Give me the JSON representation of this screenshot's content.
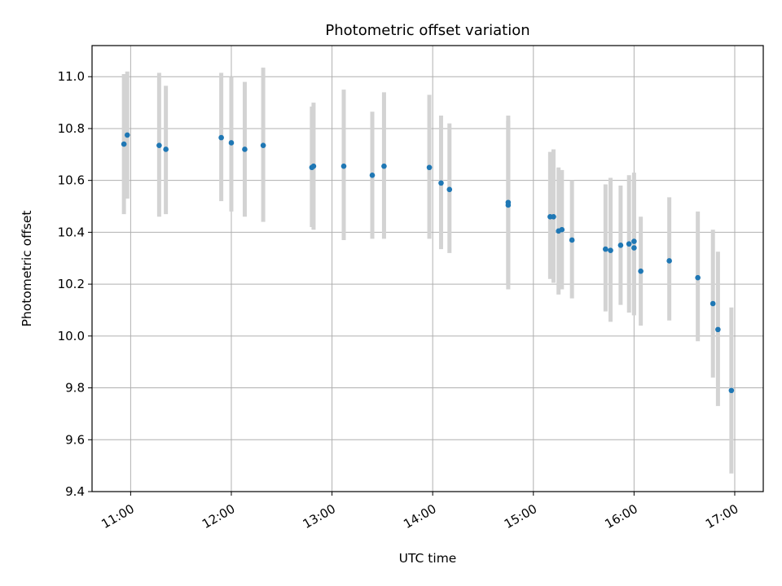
{
  "chart_data": {
    "type": "scatter",
    "title": "Photometric offset variation",
    "xlabel": "UTC time",
    "ylabel": "Photometric offset",
    "xlim": [
      "10:37",
      "17:17"
    ],
    "ylim": [
      9.4,
      11.12
    ],
    "x_ticks": [
      "11:00",
      "12:00",
      "13:00",
      "14:00",
      "15:00",
      "16:00",
      "17:00"
    ],
    "y_ticks": [
      "9.4",
      "9.6",
      "9.8",
      "10.0",
      "10.2",
      "10.4",
      "10.6",
      "10.8",
      "11.0"
    ],
    "grid": true,
    "marker_color": "#1f77b4",
    "errorbar_color": "#d3d3d3",
    "series": [
      {
        "points": [
          {
            "x": "10:56",
            "y": 10.74,
            "lo": 10.47,
            "hi": 11.01
          },
          {
            "x": "10:58",
            "y": 10.775,
            "lo": 10.53,
            "hi": 11.02
          },
          {
            "x": "11:17",
            "y": 10.735,
            "lo": 10.46,
            "hi": 11.015
          },
          {
            "x": "11:21",
            "y": 10.72,
            "lo": 10.47,
            "hi": 10.965
          },
          {
            "x": "11:54",
            "y": 10.765,
            "lo": 10.52,
            "hi": 11.015
          },
          {
            "x": "12:00",
            "y": 10.745,
            "lo": 10.48,
            "hi": 11.0
          },
          {
            "x": "12:08",
            "y": 10.72,
            "lo": 10.46,
            "hi": 10.98
          },
          {
            "x": "12:19",
            "y": 10.735,
            "lo": 10.44,
            "hi": 11.035
          },
          {
            "x": "12:48",
            "y": 10.65,
            "lo": 10.42,
            "hi": 10.885
          },
          {
            "x": "12:49",
            "y": 10.655,
            "lo": 10.41,
            "hi": 10.9
          },
          {
            "x": "13:07",
            "y": 10.655,
            "lo": 10.37,
            "hi": 10.95
          },
          {
            "x": "13:24",
            "y": 10.62,
            "lo": 10.375,
            "hi": 10.865
          },
          {
            "x": "13:31",
            "y": 10.655,
            "lo": 10.375,
            "hi": 10.94
          },
          {
            "x": "13:58",
            "y": 10.65,
            "lo": 10.375,
            "hi": 10.93
          },
          {
            "x": "14:05",
            "y": 10.59,
            "lo": 10.335,
            "hi": 10.85
          },
          {
            "x": "14:10",
            "y": 10.565,
            "lo": 10.32,
            "hi": 10.82
          },
          {
            "x": "14:45",
            "y": 10.505,
            "lo": 10.18,
            "hi": 10.85
          },
          {
            "x": "14:45",
            "y": 10.515,
            "lo": 10.2,
            "hi": 10.83
          },
          {
            "x": "15:10",
            "y": 10.46,
            "lo": 10.22,
            "hi": 10.71
          },
          {
            "x": "15:12",
            "y": 10.46,
            "lo": 10.205,
            "hi": 10.72
          },
          {
            "x": "15:15",
            "y": 10.405,
            "lo": 10.16,
            "hi": 10.65
          },
          {
            "x": "15:17",
            "y": 10.41,
            "lo": 10.18,
            "hi": 10.64
          },
          {
            "x": "15:23",
            "y": 10.37,
            "lo": 10.145,
            "hi": 10.6
          },
          {
            "x": "15:43",
            "y": 10.335,
            "lo": 10.095,
            "hi": 10.585
          },
          {
            "x": "15:46",
            "y": 10.33,
            "lo": 10.055,
            "hi": 10.61
          },
          {
            "x": "15:52",
            "y": 10.35,
            "lo": 10.12,
            "hi": 10.58
          },
          {
            "x": "15:57",
            "y": 10.355,
            "lo": 10.09,
            "hi": 10.62
          },
          {
            "x": "16:00",
            "y": 10.365,
            "lo": 10.08,
            "hi": 10.63
          },
          {
            "x": "16:00",
            "y": 10.34,
            "lo": 10.08,
            "hi": 10.6
          },
          {
            "x": "16:04",
            "y": 10.25,
            "lo": 10.04,
            "hi": 10.46
          },
          {
            "x": "16:21",
            "y": 10.29,
            "lo": 10.06,
            "hi": 10.535
          },
          {
            "x": "16:38",
            "y": 10.225,
            "lo": 9.98,
            "hi": 10.48
          },
          {
            "x": "16:47",
            "y": 10.125,
            "lo": 9.84,
            "hi": 10.41
          },
          {
            "x": "16:50",
            "y": 10.025,
            "lo": 9.73,
            "hi": 10.325
          },
          {
            "x": "16:58",
            "y": 9.79,
            "lo": 9.47,
            "hi": 10.11
          }
        ]
      }
    ]
  }
}
